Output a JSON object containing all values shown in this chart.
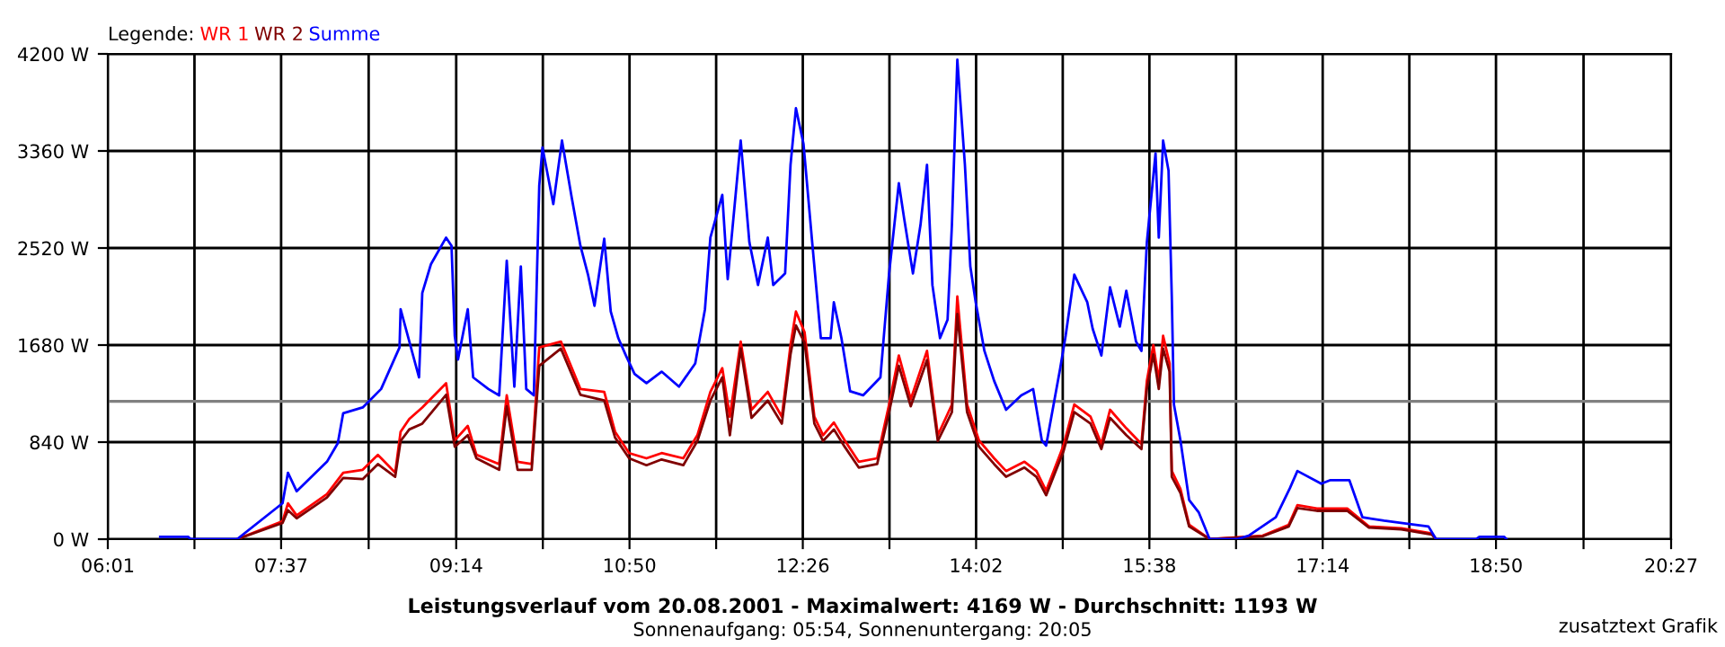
{
  "chart_data": {
    "type": "line",
    "title": "Leistungsverlauf vom 20.08.2001 - Maximalwert: 4169 W - Durchschnitt: 1193 W",
    "subtitle": "Sonnenaufgang: 05:54, Sonnenuntergang: 20:05",
    "legend_title": "Legende:",
    "legend": "top left",
    "annotations": [
      "zusatztext Grafik"
    ],
    "grid": true,
    "xlim": [
      6.0167,
      20.45
    ],
    "ylim": [
      0,
      4200
    ],
    "xticks": [
      {
        "value": 6.0167,
        "label": "06:01"
      },
      {
        "value": 6.8167,
        "label": null
      },
      {
        "value": 7.6167,
        "label": "07:37"
      },
      {
        "value": 8.425,
        "label": null
      },
      {
        "value": 9.2333,
        "label": "09:14"
      },
      {
        "value": 10.0333,
        "label": null
      },
      {
        "value": 10.8333,
        "label": "10:50"
      },
      {
        "value": 11.6333,
        "label": null
      },
      {
        "value": 12.4333,
        "label": "12:26"
      },
      {
        "value": 13.2333,
        "label": null
      },
      {
        "value": 14.0333,
        "label": "14:02"
      },
      {
        "value": 14.8333,
        "label": null
      },
      {
        "value": 15.6333,
        "label": "15:38"
      },
      {
        "value": 16.4333,
        "label": null
      },
      {
        "value": 17.2333,
        "label": "17:14"
      },
      {
        "value": 18.0333,
        "label": null
      },
      {
        "value": 18.8333,
        "label": "18:50"
      },
      {
        "value": 19.6417,
        "label": null
      },
      {
        "value": 20.45,
        "label": "20:27"
      }
    ],
    "yticks": [
      {
        "value": 0,
        "label": "0 W"
      },
      {
        "value": 840,
        "label": "840 W"
      },
      {
        "value": 1680,
        "label": "1680 W"
      },
      {
        "value": 2520,
        "label": "2520 W"
      },
      {
        "value": 3360,
        "label": "3360 W"
      },
      {
        "value": 4200,
        "label": "4200 W"
      }
    ],
    "ref_lines": [
      {
        "axis": "y",
        "value": 1193,
        "label": null,
        "color": "#808080"
      }
    ],
    "series": [
      {
        "name": "WR 1",
        "color": "#ff0000",
        "x": [
          7.21,
          7.63,
          7.68,
          7.76,
          8.04,
          8.19,
          8.37,
          8.51,
          8.67,
          8.72,
          8.8,
          8.92,
          9.14,
          9.22,
          9.34,
          9.42,
          9.63,
          9.7,
          9.8,
          9.93,
          10.0,
          10.2,
          10.38,
          10.6,
          10.7,
          10.83,
          10.99,
          11.13,
          11.33,
          11.46,
          11.58,
          11.69,
          11.76,
          11.86,
          11.96,
          12.11,
          12.24,
          12.32,
          12.37,
          12.45,
          12.54,
          12.62,
          12.72,
          12.82,
          12.95,
          13.12,
          13.23,
          13.32,
          13.43,
          13.58,
          13.68,
          13.81,
          13.86,
          13.95,
          14.06,
          14.2,
          14.31,
          14.48,
          14.59,
          14.68,
          14.84,
          14.94,
          15.09,
          15.19,
          15.27,
          15.42,
          15.56,
          15.61,
          15.67,
          15.72,
          15.76,
          15.82,
          15.84,
          15.92,
          16.0,
          16.19,
          16.68,
          16.92,
          17.0,
          17.18,
          17.46,
          17.66,
          17.96,
          18.24,
          18.28
        ],
        "values": [
          0,
          155,
          310,
          205,
          390,
          575,
          600,
          730,
          575,
          930,
          1040,
          1140,
          1350,
          855,
          980,
          730,
          650,
          1245,
          670,
          650,
          1660,
          1710,
          1300,
          1275,
          930,
          745,
          700,
          745,
          700,
          900,
          1275,
          1480,
          1060,
          1710,
          1120,
          1275,
          1060,
          1680,
          1970,
          1790,
          1060,
          900,
          1010,
          855,
          670,
          700,
          1165,
          1590,
          1210,
          1630,
          900,
          1165,
          2100,
          1165,
          855,
          700,
          590,
          670,
          590,
          420,
          810,
          1165,
          1060,
          825,
          1120,
          960,
          825,
          1370,
          1680,
          1370,
          1760,
          1520,
          590,
          435,
          125,
          0,
          30,
          125,
          295,
          265,
          265,
          110,
          95,
          50,
          0
        ]
      },
      {
        "name": "WR 2",
        "color": "#800000",
        "x": [
          7.21,
          7.63,
          7.68,
          7.76,
          8.04,
          8.19,
          8.37,
          8.51,
          8.67,
          8.72,
          8.8,
          8.92,
          9.14,
          9.22,
          9.34,
          9.42,
          9.63,
          9.7,
          9.8,
          9.93,
          10.0,
          10.2,
          10.38,
          10.6,
          10.7,
          10.83,
          10.99,
          11.13,
          11.33,
          11.46,
          11.58,
          11.69,
          11.76,
          11.86,
          11.96,
          12.11,
          12.24,
          12.32,
          12.37,
          12.45,
          12.54,
          12.62,
          12.72,
          12.82,
          12.95,
          13.12,
          13.23,
          13.32,
          13.43,
          13.58,
          13.68,
          13.81,
          13.86,
          13.95,
          14.06,
          14.2,
          14.31,
          14.48,
          14.59,
          14.68,
          14.84,
          14.94,
          15.09,
          15.19,
          15.27,
          15.42,
          15.56,
          15.61,
          15.67,
          15.72,
          15.76,
          15.82,
          15.84,
          15.92,
          16.0,
          16.19,
          16.68,
          16.92,
          17.0,
          17.18,
          17.46,
          17.66,
          17.96,
          18.24,
          18.28
        ],
        "values": [
          0,
          140,
          250,
          180,
          360,
          530,
          520,
          650,
          540,
          850,
          950,
          1000,
          1250,
          800,
          900,
          700,
          600,
          1150,
          600,
          600,
          1500,
          1650,
          1250,
          1200,
          880,
          700,
          640,
          690,
          640,
          850,
          1200,
          1400,
          900,
          1650,
          1050,
          1200,
          1000,
          1600,
          1850,
          1700,
          1000,
          850,
          950,
          800,
          620,
          650,
          1100,
          1500,
          1150,
          1550,
          850,
          1100,
          1950,
          1100,
          800,
          650,
          540,
          620,
          540,
          380,
          760,
          1100,
          1000,
          780,
          1050,
          900,
          780,
          1300,
          1600,
          1300,
          1650,
          1450,
          540,
          400,
          110,
          0,
          25,
          110,
          270,
          245,
          245,
          100,
          85,
          40,
          0
        ]
      },
      {
        "name": "Summe",
        "color": "#0000ff",
        "x": [
          6.5,
          6.76,
          6.78,
          7.21,
          7.63,
          7.68,
          7.76,
          8.04,
          8.14,
          8.19,
          8.37,
          8.54,
          8.71,
          8.72,
          8.89,
          8.92,
          9.0,
          9.14,
          9.19,
          9.22,
          9.25,
          9.34,
          9.39,
          9.53,
          9.63,
          9.7,
          9.77,
          9.83,
          9.88,
          9.95,
          10.0,
          10.03,
          10.13,
          10.21,
          10.3,
          10.38,
          10.45,
          10.51,
          10.6,
          10.66,
          10.73,
          10.8,
          10.88,
          10.99,
          11.13,
          11.29,
          11.44,
          11.53,
          11.58,
          11.69,
          11.74,
          11.86,
          11.94,
          12.02,
          12.11,
          12.16,
          12.27,
          12.32,
          12.37,
          12.44,
          12.52,
          12.6,
          12.69,
          12.72,
          12.79,
          12.87,
          12.99,
          13.15,
          13.23,
          13.32,
          13.37,
          13.45,
          13.52,
          13.58,
          13.63,
          13.7,
          13.77,
          13.81,
          13.86,
          13.93,
          13.98,
          14.03,
          14.11,
          14.2,
          14.31,
          14.45,
          14.56,
          14.64,
          14.68,
          14.81,
          14.86,
          14.94,
          15.06,
          15.11,
          15.19,
          15.27,
          15.36,
          15.42,
          15.51,
          15.56,
          15.61,
          15.69,
          15.72,
          15.76,
          15.81,
          15.84,
          15.86,
          15.92,
          16.0,
          16.09,
          16.19,
          16.44,
          16.55,
          16.8,
          16.93,
          17.0,
          17.22,
          17.3,
          17.48,
          17.6,
          17.8,
          18.08,
          18.21,
          18.28,
          18.65,
          18.68,
          18.91,
          18.93
        ],
        "values": [
          20,
          20,
          0,
          0,
          311,
          575,
          415,
          670,
          830,
          1090,
          1140,
          1300,
          1660,
          1990,
          1400,
          2130,
          2380,
          2610,
          2540,
          1760,
          1555,
          1990,
          1400,
          1300,
          1245,
          2410,
          1320,
          2360,
          1300,
          1245,
          3060,
          3390,
          2900,
          3450,
          2955,
          2540,
          2290,
          2020,
          2600,
          1970,
          1740,
          1590,
          1430,
          1350,
          1450,
          1320,
          1520,
          1990,
          2610,
          2980,
          2250,
          3450,
          2570,
          2200,
          2610,
          2200,
          2300,
          3240,
          3730,
          3420,
          2570,
          1740,
          1740,
          2050,
          1740,
          1280,
          1245,
          1400,
          2300,
          3080,
          2770,
          2300,
          2720,
          3240,
          2200,
          1740,
          1900,
          2720,
          4150,
          3240,
          2360,
          2050,
          1630,
          1370,
          1120,
          1245,
          1300,
          855,
          810,
          1480,
          1760,
          2290,
          2050,
          1820,
          1590,
          2180,
          1840,
          2150,
          1710,
          1630,
          2570,
          3340,
          2610,
          3450,
          3190,
          2100,
          1165,
          855,
          340,
          230,
          0,
          0,
          30,
          190,
          440,
          590,
          480,
          510,
          510,
          190,
          160,
          125,
          110,
          0,
          0,
          20,
          20,
          0
        ]
      }
    ]
  }
}
